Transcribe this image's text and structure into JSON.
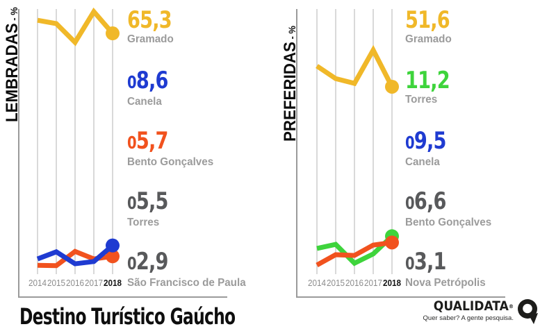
{
  "footer": {
    "title": "Destino Turístico Gaúcho"
  },
  "brand": {
    "name": "QUALIDATA",
    "registered": "®",
    "tagline": "Quer saber? A gente pesquisa.",
    "icon": "q-speech-bubble-icon",
    "color": "#1D1D1B"
  },
  "style": {
    "city_label_color": "#9B9B9B",
    "dark_value_color": "#58595B",
    "year_color": "#8C8C8C",
    "year_highlight_color": "#141414",
    "grid_color": "#C9C9C9",
    "axis_color": "#9A9A9A",
    "yellow": "#F0B829",
    "blue": "#1F3BD1",
    "orange": "#F1521E",
    "green": "#3ED43C"
  },
  "chart_data": [
    {
      "id": "lembradas",
      "type": "line",
      "title": "LEMBRADAS",
      "unit_label": " - %",
      "x": [
        "2014",
        "2015",
        "2016",
        "2017",
        "2018"
      ],
      "x_highlight": "2018",
      "ylim": [
        0,
        72
      ],
      "grid": "vertical-year-gridlines",
      "legend_position": "value-callouts-right",
      "series": [
        {
          "name": "Gramado",
          "color": "#F0B829",
          "values": [
            68.8,
            67.9,
            62.9,
            71.1,
            65.3
          ],
          "endpoint_dot": true
        },
        {
          "name": "Bento Gonçalves",
          "color": "#F1521E",
          "values": [
            3.3,
            3.2,
            7.0,
            5.0,
            5.7
          ],
          "endpoint_dot": true
        },
        {
          "name": "Canela",
          "color": "#1F3BD1",
          "values": [
            5.0,
            6.9,
            3.7,
            4.3,
            8.6
          ],
          "endpoint_dot": true
        }
      ],
      "callouts": [
        {
          "value": "65,3",
          "city": "Gramado",
          "color": "#F0B829"
        },
        {
          "value": "08,6",
          "city": "Canela",
          "color": "#1F3BD1"
        },
        {
          "value": "05,7",
          "city": "Bento Gonçalves",
          "color": "#F1521E"
        },
        {
          "value": "05,5",
          "city": "Torres",
          "color": "#58595B"
        },
        {
          "value": "02,9",
          "city": "São Francisco de Paula",
          "color": "#58595B"
        }
      ]
    },
    {
      "id": "preferidas",
      "type": "line",
      "title": "PREFERIDAS",
      "unit_label": " - %",
      "x": [
        "2014",
        "2015",
        "2016",
        "2017",
        "2018"
      ],
      "x_highlight": "2018",
      "ylim": [
        0,
        72
      ],
      "grid": "vertical-year-gridlines",
      "legend_position": "value-callouts-right",
      "series": [
        {
          "name": "Gramado",
          "color": "#F0B829",
          "values": [
            57.2,
            53.8,
            52.5,
            61.5,
            51.6
          ],
          "endpoint_dot": true
        },
        {
          "name": "Torres",
          "color": "#3ED43C",
          "values": [
            7.9,
            9.0,
            3.9,
            6.4,
            11.2
          ],
          "endpoint_dot": true
        },
        {
          "name": "Canela",
          "color": "#F1521E",
          "values": [
            3.4,
            6.2,
            6.0,
            8.8,
            9.5
          ],
          "endpoint_dot": true
        }
      ],
      "callouts": [
        {
          "value": "51,6",
          "city": "Gramado",
          "color": "#F0B829"
        },
        {
          "value": "11,2",
          "city": "Torres",
          "color": "#3ED43C"
        },
        {
          "value": "09,5",
          "city": "Canela",
          "color": "#1F3BD1"
        },
        {
          "value": "06,6",
          "city": "Bento Gonçalves",
          "color": "#58595B"
        },
        {
          "value": "03,1",
          "city": "Nova Petrópolis",
          "color": "#58595B"
        }
      ]
    }
  ]
}
